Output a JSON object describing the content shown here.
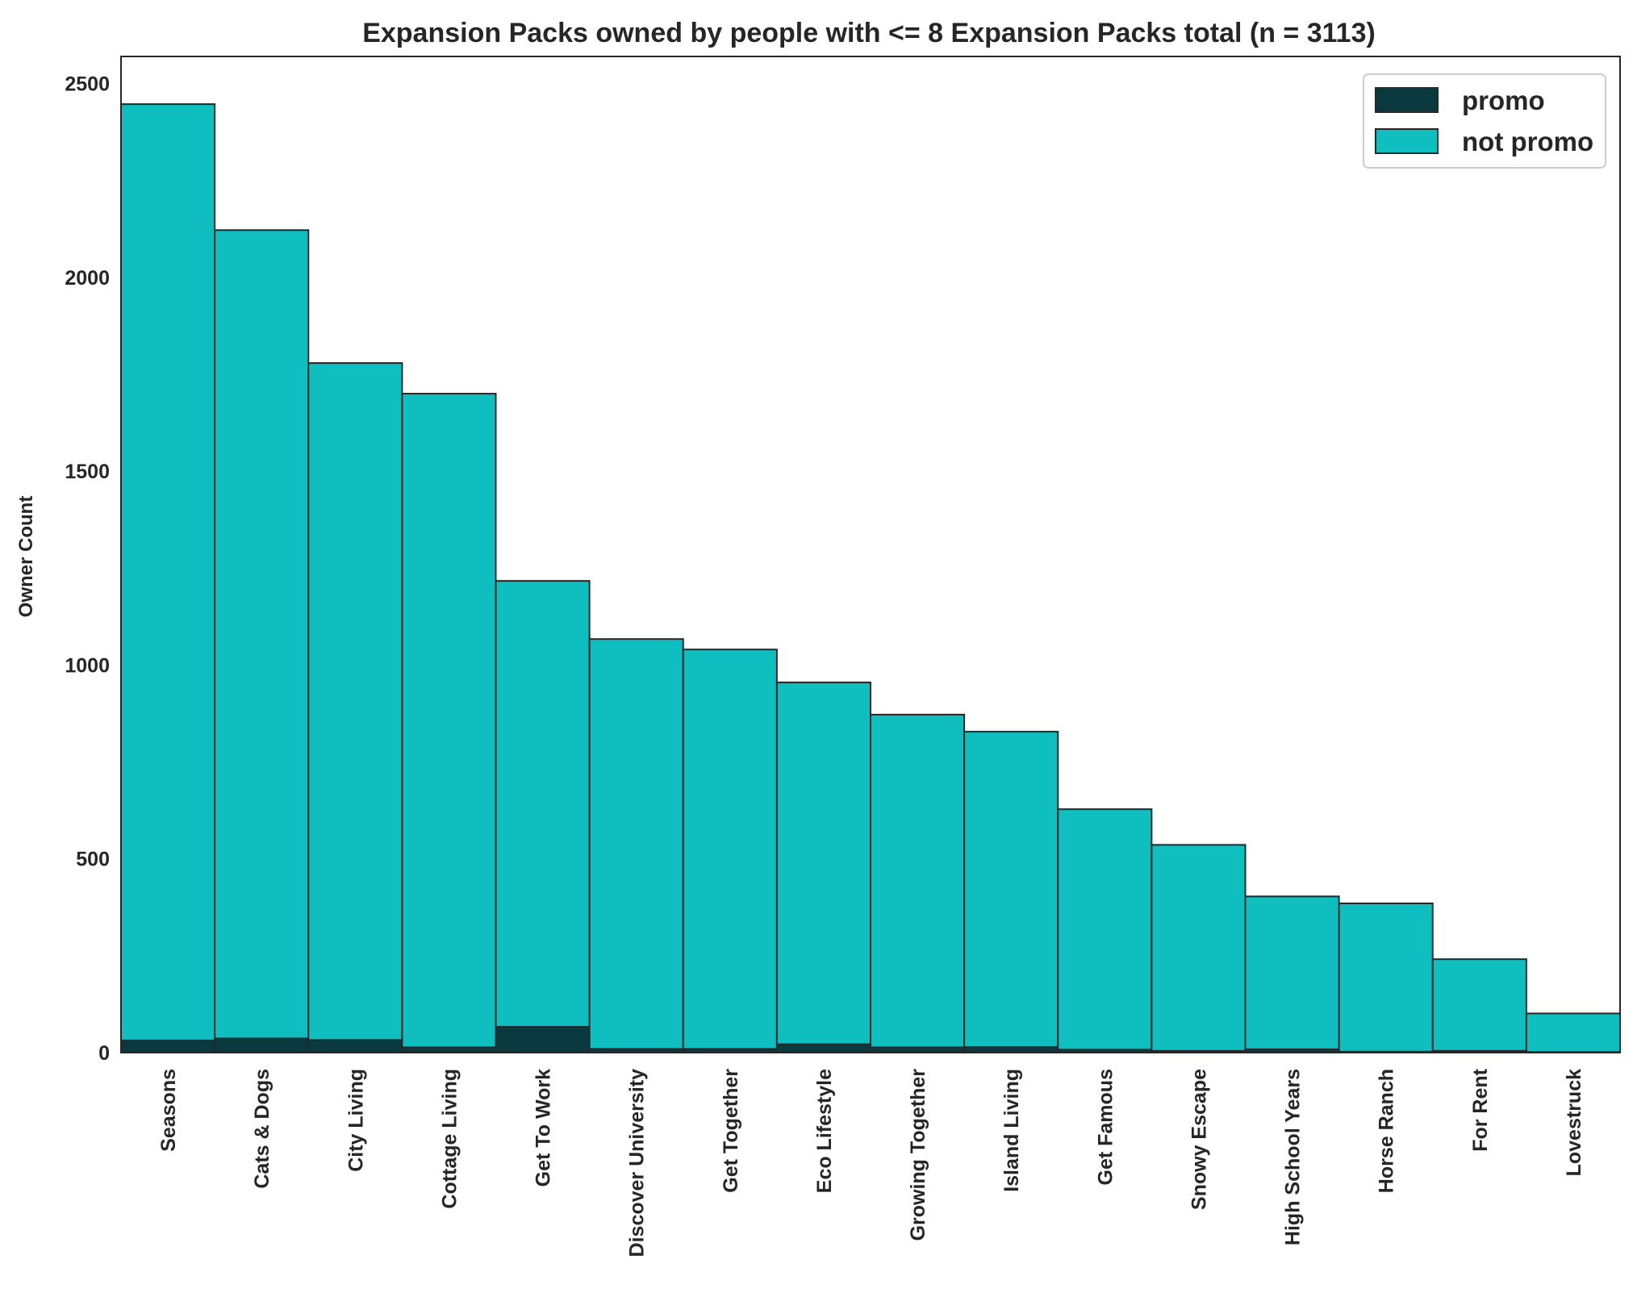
{
  "chart_data": {
    "type": "bar",
    "title": "Expansion Packs owned by people with <= 8 Expansion Packs total (n = 3113)",
    "xlabel": "",
    "ylabel": "Owner Count",
    "ylim": [
      0,
      2570
    ],
    "yticks": [
      0,
      500,
      1000,
      1500,
      2000,
      2500
    ],
    "grid": false,
    "legend_position": "top-right",
    "colors": {
      "promo": "#0a3a40",
      "not_promo": "#0fbfc0",
      "edge": "#262626"
    },
    "categories": [
      "Seasons",
      "Cats & Dogs",
      "City Living",
      "Cottage Living",
      "Get To Work",
      "Discover University",
      "Get Together",
      "Eco Lifestyle",
      "Growing Together",
      "Island Living",
      "Get Famous",
      "Snowy Escape",
      "High School Years",
      "Horse Ranch",
      "For Rent",
      "Lovestruck"
    ],
    "series": [
      {
        "name": "promo",
        "values": [
          32,
          37,
          33,
          14,
          67,
          10,
          10,
          22,
          14,
          15,
          8,
          5,
          9,
          3,
          5,
          2
        ]
      },
      {
        "name": "not promo",
        "values": [
          2447,
          2122,
          1779,
          1700,
          1217,
          1067,
          1040,
          955,
          872,
          828,
          628,
          536,
          403,
          385,
          241,
          101
        ]
      }
    ]
  }
}
